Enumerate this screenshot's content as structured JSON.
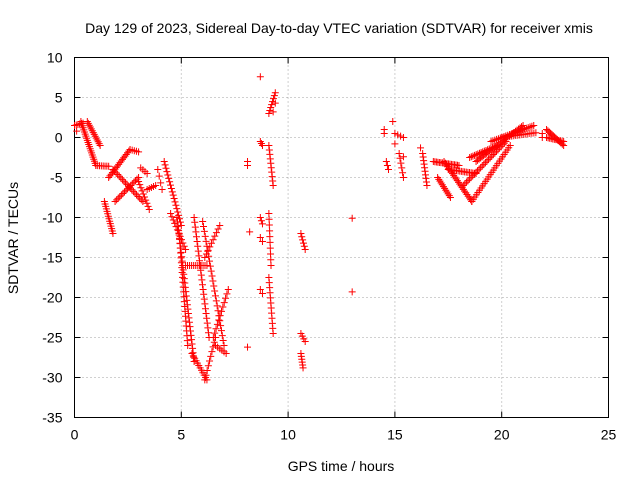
{
  "chart_data": {
    "type": "scatter",
    "title": "Day 129 of 2023, Sidereal Day-to-day VTEC variation (SDTVAR) for receiver xmis",
    "xlabel": "GPS time / hours",
    "ylabel": "SDTVAR / TECUs",
    "xlim": [
      0,
      25
    ],
    "ylim": [
      -35,
      10
    ],
    "xticks": [
      0,
      5,
      10,
      15,
      20,
      25
    ],
    "yticks": [
      10,
      5,
      0,
      -5,
      -10,
      -15,
      -20,
      -25,
      -30,
      -35
    ],
    "xtick_labels": [
      "0",
      "5",
      "10",
      "15",
      "20",
      "25"
    ],
    "ytick_labels": [
      "10",
      "5",
      "0",
      "-5",
      "-10",
      "-15",
      "-20",
      "-25",
      "-30",
      "-35"
    ],
    "grid": true,
    "marker": "+",
    "color": "#ff0000",
    "segments": [
      {
        "x0": 0.0,
        "y0": 1.5,
        "x1": 0.4,
        "y1": 1.8,
        "n": 6
      },
      {
        "x0": 0.3,
        "y0": 2.0,
        "x1": 1.0,
        "y1": -3.5,
        "n": 22
      },
      {
        "x0": 0.6,
        "y0": 2.0,
        "x1": 1.2,
        "y1": -1.0,
        "n": 14
      },
      {
        "x0": 1.0,
        "y0": -3.5,
        "x1": 1.6,
        "y1": -3.6,
        "n": 8
      },
      {
        "x0": 1.4,
        "y0": -8.0,
        "x1": 1.8,
        "y1": -12.0,
        "n": 14
      },
      {
        "x0": 1.6,
        "y0": -5.0,
        "x1": 2.6,
        "y1": -1.5,
        "n": 18
      },
      {
        "x0": 1.8,
        "y0": -4.0,
        "x1": 3.2,
        "y1": -8.0,
        "n": 20
      },
      {
        "x0": 1.9,
        "y0": -8.0,
        "x1": 3.0,
        "y1": -5.0,
        "n": 16
      },
      {
        "x0": 2.6,
        "y0": -1.5,
        "x1": 3.0,
        "y1": -1.8,
        "n": 5
      },
      {
        "x0": 3.0,
        "y0": -5.5,
        "x1": 3.5,
        "y1": -9.0,
        "n": 10
      },
      {
        "x0": 3.1,
        "y0": -3.8,
        "x1": 3.4,
        "y1": -4.5,
        "n": 4
      },
      {
        "x0": 3.4,
        "y0": -6.5,
        "x1": 3.8,
        "y1": -6.0,
        "n": 5
      },
      {
        "x0": 3.9,
        "y0": -4.0,
        "x1": 4.1,
        "y1": -6.5,
        "n": 4
      },
      {
        "x0": 4.2,
        "y0": -3.0,
        "x1": 5.0,
        "y1": -11.0,
        "n": 20
      },
      {
        "x0": 4.5,
        "y0": -9.5,
        "x1": 5.2,
        "y1": -14.0,
        "n": 12
      },
      {
        "x0": 4.8,
        "y0": -10.0,
        "x1": 5.6,
        "y1": -28.0,
        "n": 34
      },
      {
        "x0": 4.9,
        "y0": -12.0,
        "x1": 5.3,
        "y1": -26.0,
        "n": 24
      },
      {
        "x0": 5.2,
        "y0": -16.0,
        "x1": 6.2,
        "y1": -16.0,
        "n": 12
      },
      {
        "x0": 5.5,
        "y0": -27.0,
        "x1": 6.2,
        "y1": -30.3,
        "n": 12
      },
      {
        "x0": 5.6,
        "y0": -10.0,
        "x1": 6.3,
        "y1": -25.0,
        "n": 26
      },
      {
        "x0": 6.0,
        "y0": -10.5,
        "x1": 7.0,
        "y1": -26.0,
        "n": 26
      },
      {
        "x0": 6.1,
        "y0": -30.3,
        "x1": 6.6,
        "y1": -25.0,
        "n": 10
      },
      {
        "x0": 6.1,
        "y0": -15.0,
        "x1": 6.8,
        "y1": -11.0,
        "n": 10
      },
      {
        "x0": 6.5,
        "y0": -25.0,
        "x1": 7.2,
        "y1": -19.0,
        "n": 12
      },
      {
        "x0": 6.6,
        "y0": -26.0,
        "x1": 7.1,
        "y1": -27.0,
        "n": 6
      },
      {
        "x0": 8.1,
        "y0": -3.0,
        "x1": 8.1,
        "y1": -3.5,
        "n": 2
      },
      {
        "x0": 8.7,
        "y0": -0.5,
        "x1": 8.8,
        "y1": -1.0,
        "n": 3
      },
      {
        "x0": 8.7,
        "y0": -10.0,
        "x1": 8.8,
        "y1": -10.8,
        "n": 3
      },
      {
        "x0": 8.7,
        "y0": -12.5,
        "x1": 8.8,
        "y1": -13.0,
        "n": 2
      },
      {
        "x0": 8.7,
        "y0": -19.0,
        "x1": 8.8,
        "y1": -19.5,
        "n": 2
      },
      {
        "x0": 9.1,
        "y0": 3.0,
        "x1": 9.4,
        "y1": 5.6,
        "n": 8
      },
      {
        "x0": 9.1,
        "y0": -9.5,
        "x1": 9.2,
        "y1": -16.0,
        "n": 10
      },
      {
        "x0": 9.1,
        "y0": -17.5,
        "x1": 9.3,
        "y1": -24.5,
        "n": 12
      },
      {
        "x0": 9.1,
        "y0": -1.0,
        "x1": 9.3,
        "y1": -6.0,
        "n": 10
      },
      {
        "x0": 10.6,
        "y0": -12.0,
        "x1": 10.8,
        "y1": -14.0,
        "n": 6
      },
      {
        "x0": 10.6,
        "y0": -24.5,
        "x1": 10.8,
        "y1": -25.5,
        "n": 4
      },
      {
        "x0": 10.6,
        "y0": -27.0,
        "x1": 10.7,
        "y1": -28.8,
        "n": 6
      },
      {
        "x0": 14.5,
        "y0": 1.0,
        "x1": 14.5,
        "y1": 0.5,
        "n": 2
      },
      {
        "x0": 14.6,
        "y0": -3.0,
        "x1": 14.7,
        "y1": -4.0,
        "n": 3
      },
      {
        "x0": 15.0,
        "y0": 0.5,
        "x1": 15.4,
        "y1": 0.0,
        "n": 4
      },
      {
        "x0": 15.2,
        "y0": -2.0,
        "x1": 15.4,
        "y1": -5.0,
        "n": 6
      },
      {
        "x0": 16.3,
        "y0": -2.0,
        "x1": 16.5,
        "y1": -6.0,
        "n": 10
      },
      {
        "x0": 16.8,
        "y0": -3.0,
        "x1": 18.0,
        "y1": -3.5,
        "n": 18
      },
      {
        "x0": 17.0,
        "y0": -5.0,
        "x1": 17.6,
        "y1": -7.5,
        "n": 12
      },
      {
        "x0": 17.3,
        "y0": -3.0,
        "x1": 18.6,
        "y1": -8.0,
        "n": 24
      },
      {
        "x0": 17.5,
        "y0": -4.0,
        "x1": 18.8,
        "y1": -4.5,
        "n": 18
      },
      {
        "x0": 18.2,
        "y0": -6.0,
        "x1": 20.2,
        "y1": -0.5,
        "n": 28
      },
      {
        "x0": 18.5,
        "y0": -2.5,
        "x1": 19.8,
        "y1": -1.0,
        "n": 18
      },
      {
        "x0": 18.8,
        "y0": -3.0,
        "x1": 21.0,
        "y1": 1.5,
        "n": 32
      },
      {
        "x0": 18.6,
        "y0": -8.0,
        "x1": 20.4,
        "y1": -1.0,
        "n": 26
      },
      {
        "x0": 19.5,
        "y0": -0.5,
        "x1": 21.5,
        "y1": 1.5,
        "n": 24
      },
      {
        "x0": 20.0,
        "y0": 0.0,
        "x1": 21.6,
        "y1": 0.6,
        "n": 18
      },
      {
        "x0": 21.9,
        "y0": 0.5,
        "x1": 21.9,
        "y1": 0.0,
        "n": 2
      },
      {
        "x0": 22.1,
        "y0": 1.0,
        "x1": 22.9,
        "y1": -1.0,
        "n": 14
      },
      {
        "x0": 22.1,
        "y0": 0.0,
        "x1": 22.9,
        "y1": -0.5,
        "n": 12
      }
    ],
    "points": [
      {
        "x": 8.7,
        "y": 7.6
      },
      {
        "x": 9.3,
        "y": 3.2
      },
      {
        "x": 9.4,
        "y": 4.3
      },
      {
        "x": 8.2,
        "y": -11.8
      },
      {
        "x": 8.1,
        "y": -26.2
      },
      {
        "x": 13.0,
        "y": -10.1
      },
      {
        "x": 13.0,
        "y": -19.3
      },
      {
        "x": 14.9,
        "y": 2.0
      },
      {
        "x": 15.0,
        "y": -0.8
      },
      {
        "x": 15.4,
        "y": -2.4
      },
      {
        "x": 16.2,
        "y": -1.3
      },
      {
        "x": 0.1,
        "y": 0.8
      }
    ]
  }
}
